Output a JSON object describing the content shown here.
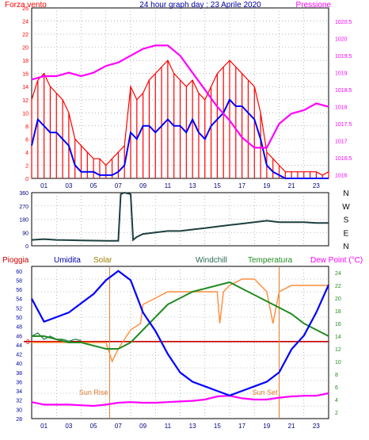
{
  "colors": {
    "wind": "#ff0000",
    "wind_avg": "#0000ff",
    "pressure": "#ff00ff",
    "humidity": "#0000ff",
    "solar": "#ff8c3a",
    "windchill": "#2e8b57",
    "temperature": "#228b22",
    "dewpoint": "#ff00ff",
    "rain": "#cc0000",
    "direction": "#1f3f3f",
    "sun_marker": "#e07a2a",
    "axis": "#000000",
    "grid": "#888888"
  },
  "chart_data": [
    {
      "id": "wind-pressure",
      "type": "line",
      "title": "24 hour graph day : 23 Aprile 2020",
      "left_label": "Forza vento",
      "right_label": "Pressione",
      "x_ticks": [
        "01",
        "03",
        "05",
        "07",
        "09",
        "11",
        "13",
        "15",
        "17",
        "19",
        "21",
        "23"
      ],
      "left_ticks": [
        "0",
        "2",
        "4",
        "6",
        "8",
        "10",
        "12",
        "14",
        "16",
        "18",
        "20",
        "22",
        "24",
        "26"
      ],
      "right_ticks": [
        "1016",
        "1016.5",
        "1017",
        "1017.5",
        "1018",
        "1018.5",
        "1019",
        "1019.5",
        "1020",
        "1020.5"
      ],
      "xlim": [
        0,
        24
      ],
      "ylim": [
        0,
        26
      ],
      "ylim_right": [
        1015.9,
        1020.9
      ],
      "grid": true,
      "series": [
        {
          "key": "wind_gust",
          "x": [
            0,
            0.5,
            1,
            1.5,
            2,
            2.5,
            3,
            3.5,
            4,
            4.5,
            5,
            5.5,
            6,
            6.5,
            7,
            7.5,
            8,
            8.5,
            9,
            9.5,
            10,
            10.5,
            11,
            11.5,
            12,
            12.5,
            13,
            13.5,
            14,
            14.5,
            15,
            15.5,
            16,
            16.5,
            17,
            17.5,
            18,
            18.5,
            19,
            19.5,
            20,
            20.5,
            21,
            21.5,
            22,
            22.5,
            23,
            23.5,
            24
          ],
          "values": [
            12,
            15,
            16,
            14,
            13,
            12,
            10,
            6,
            5,
            4,
            3,
            3,
            2,
            3,
            4,
            5,
            14,
            12,
            13,
            15,
            16,
            17,
            18,
            16,
            15,
            14,
            15,
            13,
            12,
            14,
            16,
            17,
            18,
            17,
            16,
            15,
            14,
            10,
            4,
            3,
            2,
            1,
            1,
            1,
            1,
            1,
            1,
            0.5,
            1
          ]
        },
        {
          "key": "wind_avg",
          "x": [
            0,
            0.5,
            1,
            1.5,
            2,
            2.5,
            3,
            3.5,
            4,
            4.5,
            5,
            5.5,
            6,
            6.5,
            7,
            7.5,
            8,
            8.5,
            9,
            9.5,
            10,
            10.5,
            11,
            11.5,
            12,
            12.5,
            13,
            13.5,
            14,
            14.5,
            15,
            15.5,
            16,
            16.5,
            17,
            17.5,
            18,
            18.5,
            19,
            19.5,
            20,
            20.5,
            21,
            21.5,
            22,
            22.5,
            23,
            23.5,
            24
          ],
          "values": [
            5,
            9,
            8,
            7,
            7,
            6,
            5,
            2,
            1,
            1,
            1,
            0.5,
            0.5,
            0.5,
            1,
            2,
            7,
            6,
            8,
            8,
            7,
            8,
            9,
            8,
            8,
            7,
            9,
            7,
            6,
            8,
            9,
            10,
            12,
            11,
            11,
            10,
            9,
            6,
            2,
            1,
            0.5,
            0,
            0,
            0,
            0,
            0,
            0,
            0,
            0
          ]
        },
        {
          "key": "pressure",
          "x": [
            0,
            1,
            2,
            3,
            4,
            5,
            6,
            7,
            8,
            9,
            10,
            11,
            12,
            13,
            14,
            15,
            16,
            17,
            18,
            19,
            20,
            21,
            22,
            23,
            24
          ],
          "values": [
            1018.8,
            1018.9,
            1018.9,
            1019,
            1018.9,
            1019,
            1019.2,
            1019.3,
            1019.5,
            1019.7,
            1019.8,
            1019.8,
            1019.5,
            1019,
            1018.5,
            1018,
            1017.6,
            1017.1,
            1016.8,
            1016.8,
            1017.5,
            1017.8,
            1017.9,
            1018.1,
            1018
          ]
        }
      ]
    },
    {
      "id": "wind-direction",
      "type": "line",
      "left_ticks": [
        "360",
        "270",
        "180",
        "90",
        "0"
      ],
      "right_labels": [
        "N",
        "W",
        "S",
        "E",
        "N"
      ],
      "xlim": [
        0,
        24
      ],
      "ylim": [
        0,
        360
      ],
      "grid": true,
      "series": [
        {
          "key": "direction",
          "x": [
            0,
            1,
            2,
            3,
            4,
            5,
            6,
            7,
            7.2,
            7.5,
            8,
            8.2,
            8.5,
            9,
            10,
            11,
            12,
            13,
            14,
            15,
            16,
            17,
            18,
            19,
            20,
            21,
            22,
            23,
            24
          ],
          "values": [
            40,
            45,
            40,
            38,
            36,
            35,
            34,
            34,
            350,
            360,
            350,
            40,
            60,
            80,
            90,
            100,
            100,
            110,
            120,
            130,
            140,
            150,
            160,
            170,
            160,
            160,
            160,
            155,
            155
          ]
        }
      ]
    },
    {
      "id": "weather",
      "type": "line",
      "legend": [
        "Pioggia",
        "Umidita",
        "Solar",
        "Windchill",
        "Temperatura",
        "Dew Point (°C)"
      ],
      "x_ticks": [
        "01",
        "03",
        "05",
        "07",
        "09",
        "11",
        "13",
        "15",
        "17",
        "19",
        "21",
        "23"
      ],
      "left_ticks": [
        "28",
        "30",
        "32",
        "34",
        "36",
        "38",
        "40",
        "42",
        "44",
        "46",
        "48",
        "50",
        "52",
        "54",
        "56",
        "58",
        "60"
      ],
      "right_ticks": [
        "2",
        "4",
        "6",
        "8",
        "10",
        "12",
        "14",
        "16",
        "18",
        "20",
        "22",
        "24"
      ],
      "rain_tick": "0",
      "sun_rise": "Sun Rise",
      "sun_set": "Sun Set",
      "sun_rise_hour": 6.3,
      "sun_set_hour": 20.0,
      "xlim": [
        0,
        24
      ],
      "ylim": [
        28,
        61
      ],
      "ylim_right": [
        1,
        25
      ],
      "rain_level": 44.7,
      "grid": true,
      "series": [
        {
          "key": "humidity",
          "x": [
            0,
            1,
            2,
            3,
            4,
            5,
            6,
            7,
            8,
            9,
            10,
            11,
            12,
            13,
            14,
            15,
            16,
            17,
            18,
            19,
            20,
            21,
            22,
            23,
            24
          ],
          "values": [
            54,
            49,
            50,
            51,
            53,
            55,
            58,
            60,
            58,
            51,
            47,
            42,
            38,
            36,
            35,
            34,
            33,
            34,
            35,
            36,
            38,
            43,
            46,
            51,
            57
          ]
        },
        {
          "key": "solar",
          "x": [
            0,
            1,
            2,
            3,
            4,
            5,
            6,
            6.5,
            7,
            8,
            8.8,
            9,
            10,
            11,
            12,
            13,
            14,
            15,
            15.2,
            15.5,
            16,
            17,
            18,
            19,
            19.5,
            20,
            21,
            22,
            23,
            24
          ],
          "values": [
            13,
            13,
            13,
            13,
            13,
            13,
            13,
            10,
            12,
            15,
            16,
            19,
            20,
            21,
            21,
            21,
            21,
            21,
            16,
            21,
            22,
            23,
            23,
            21,
            16,
            21,
            22,
            22,
            22,
            22
          ]
        },
        {
          "key": "windchill",
          "x": [
            0,
            0.5,
            1,
            1.5,
            2,
            2.5,
            3,
            3.5,
            4
          ],
          "values": [
            14,
            14.5,
            13.5,
            14,
            13.5,
            13.5,
            13.2,
            13.5,
            13.3
          ]
        },
        {
          "key": "temperature",
          "x": [
            0,
            1,
            2,
            3,
            4,
            5,
            6,
            7,
            8,
            9,
            10,
            11,
            12,
            13,
            14,
            15,
            16,
            17,
            18,
            19,
            20,
            21,
            22,
            23,
            24
          ],
          "values": [
            14,
            14,
            13.5,
            13,
            13,
            12.5,
            12,
            12,
            13,
            15,
            17,
            19,
            20,
            21,
            21.5,
            22,
            22.5,
            21.5,
            20.5,
            19.5,
            18.5,
            17.5,
            16,
            15,
            14
          ]
        },
        {
          "key": "dewpoint",
          "x": [
            0,
            1,
            2,
            3,
            4,
            5,
            6,
            7,
            8,
            9,
            10,
            11,
            12,
            13,
            14,
            15,
            16,
            17,
            18,
            19,
            20,
            21,
            22,
            23,
            24
          ],
          "values": [
            3.6,
            3.2,
            3.2,
            3.2,
            3.1,
            3,
            3.2,
            3.5,
            3.6,
            3.5,
            3.5,
            3.6,
            3.7,
            3.8,
            4,
            4.5,
            4.6,
            4.2,
            4,
            4,
            4.3,
            4.5,
            4.6,
            4.6,
            5
          ]
        }
      ]
    }
  ]
}
